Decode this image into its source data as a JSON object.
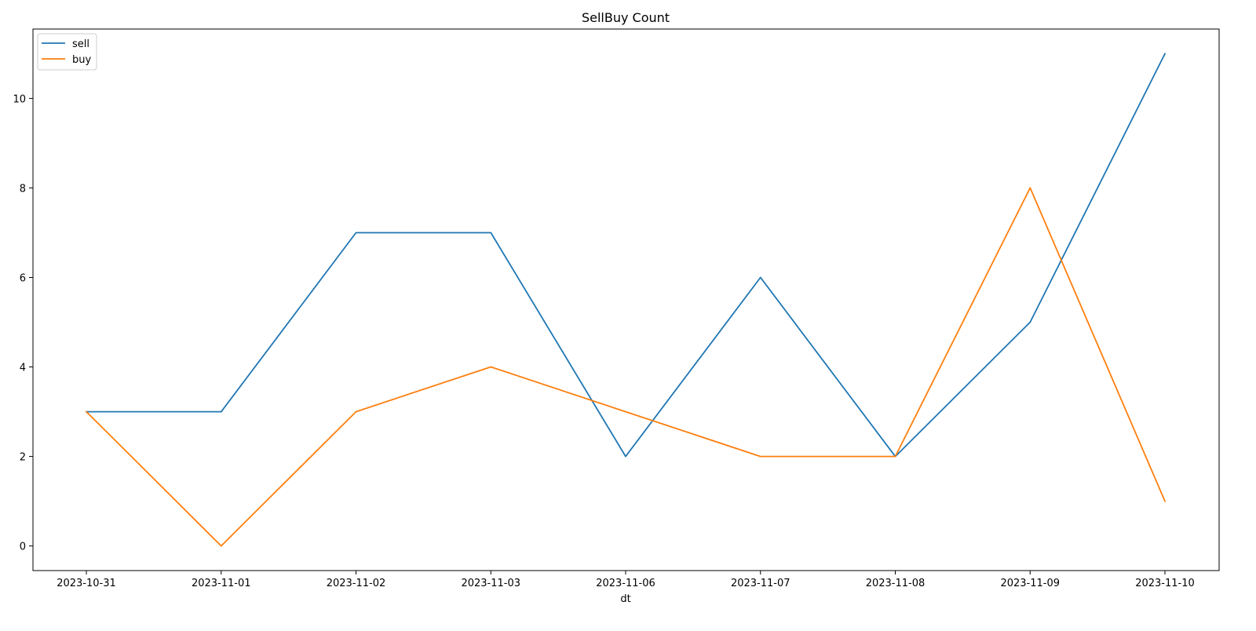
{
  "chart_data": {
    "type": "line",
    "title": "SellBuy Count",
    "xlabel": "dt",
    "ylabel": "",
    "categories": [
      "2023-10-31",
      "2023-11-01",
      "2023-11-02",
      "2023-11-03",
      "2023-11-06",
      "2023-11-07",
      "2023-11-08",
      "2023-11-09",
      "2023-11-10"
    ],
    "ylim": [
      -0.55,
      11.55
    ],
    "yticks": [
      0,
      2,
      4,
      6,
      8,
      10
    ],
    "grid": false,
    "legend_position": "top-left",
    "series": [
      {
        "name": "sell",
        "color": "#1f77b4",
        "values": [
          3,
          3,
          7,
          7,
          2,
          6,
          2,
          5,
          11
        ]
      },
      {
        "name": "buy",
        "color": "#ff7f0e",
        "values": [
          3,
          0,
          3,
          4,
          3,
          2,
          2,
          8,
          1
        ]
      }
    ]
  }
}
